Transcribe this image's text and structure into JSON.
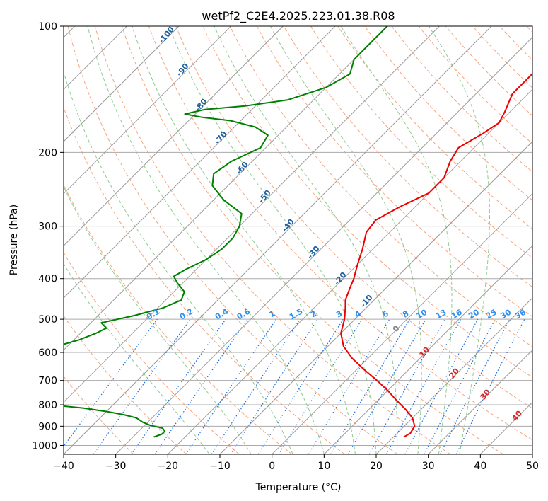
{
  "chart_data": {
    "type": "line",
    "title": "wetPf2_C2E4.2025.223.01.38.R08",
    "xlabel": "Temperature (°C)",
    "ylabel": "Pressure (hPa)",
    "xlim": [
      -40,
      50
    ],
    "ylim": [
      1050,
      100
    ],
    "y_scale": "log",
    "x_ticks": [
      -40,
      -30,
      -20,
      -10,
      0,
      10,
      20,
      30,
      40,
      50
    ],
    "x_tick_labels": [
      "−40",
      "−30",
      "−20",
      "−10",
      "0",
      "10",
      "20",
      "30",
      "40",
      "50"
    ],
    "y_ticks": [
      100,
      200,
      300,
      400,
      500,
      600,
      700,
      800,
      900,
      1000
    ],
    "y_tick_labels": [
      "100",
      "200",
      "300",
      "400",
      "500",
      "600",
      "700",
      "800",
      "900",
      "1000"
    ],
    "grid": true,
    "series": [
      {
        "color": "#ee0000",
        "p": [
          955,
          935,
          900,
          860,
          820,
          780,
          740,
          700,
          660,
          620,
          580,
          540,
          500,
          470,
          450,
          420,
          400,
          370,
          340,
          310,
          290,
          270,
          250,
          230,
          210,
          195,
          180,
          170,
          160,
          145,
          130,
          120,
          110,
          100
        ],
        "t": [
          22,
          22.5,
          22,
          20,
          17,
          13.5,
          10,
          6,
          1.5,
          -3,
          -7,
          -10,
          -12,
          -14,
          -15.5,
          -17,
          -18,
          -20,
          -22,
          -24.5,
          -25,
          -23,
          -20,
          -20,
          -22,
          -23,
          -21,
          -20,
          -21,
          -23,
          -23,
          -21,
          -20,
          -20
        ]
      },
      {
        "color": "#008000",
        "p": [
          955,
          940,
          925,
          910,
          895,
          880,
          860,
          845,
          830,
          815,
          800,
          780,
          760,
          740,
          720,
          700,
          680,
          660,
          650,
          640,
          620,
          600,
          580,
          560,
          540,
          525,
          510,
          490,
          470,
          450,
          430,
          410,
          395,
          380,
          360,
          340,
          320,
          300,
          280,
          260,
          240,
          225,
          210,
          195,
          182,
          174,
          168,
          165,
          162,
          158,
          155,
          150,
          140,
          130,
          120,
          110,
          100
        ],
        "t": [
          -26,
          -25,
          -25,
          -26,
          -29,
          -31,
          -33,
          -36,
          -40,
          -45,
          -52,
          -57,
          -59,
          -61,
          -63,
          -66,
          -69,
          -71,
          -72,
          -72,
          -68,
          -64,
          -62,
          -59,
          -57,
          -56,
          -58,
          -53,
          -49,
          -47,
          -48,
          -51,
          -53,
          -52,
          -50,
          -49,
          -49,
          -50,
          -52,
          -58,
          -63,
          -65,
          -64,
          -61,
          -62,
          -66,
          -72,
          -78,
          -82,
          -79,
          -72,
          -65,
          -60,
          -58,
          -60,
          -60,
          -60
        ]
      }
    ],
    "dry_adiabat_label": "0",
    "moist_adiabat_labels": [
      "-100",
      "-90",
      "-80",
      "-70",
      "-60",
      "-50",
      "-40",
      "-30",
      "-20",
      "-10"
    ],
    "mixing_ratio_labels": [
      "0.1",
      "0.2",
      "0.4",
      "0.6",
      "1",
      "1.5",
      "2",
      "3",
      "4",
      "6",
      "8",
      "10",
      "13",
      "16",
      "20",
      "25",
      "30",
      "36"
    ],
    "isotherm_labels": [
      "10",
      "20",
      "30",
      "40"
    ],
    "colors": {
      "isobar": "#aaaaaa",
      "skewed_isotherm": "#9a9a9a",
      "dry_adiabat": "#f4a582",
      "moist_adiabat": "#8fcc8f",
      "mixing_ratio": "#1f6fdf",
      "moist_label": "#1f5f9f",
      "mixing_label": "#2f8fef",
      "isotherm_label": "#d62728"
    }
  }
}
